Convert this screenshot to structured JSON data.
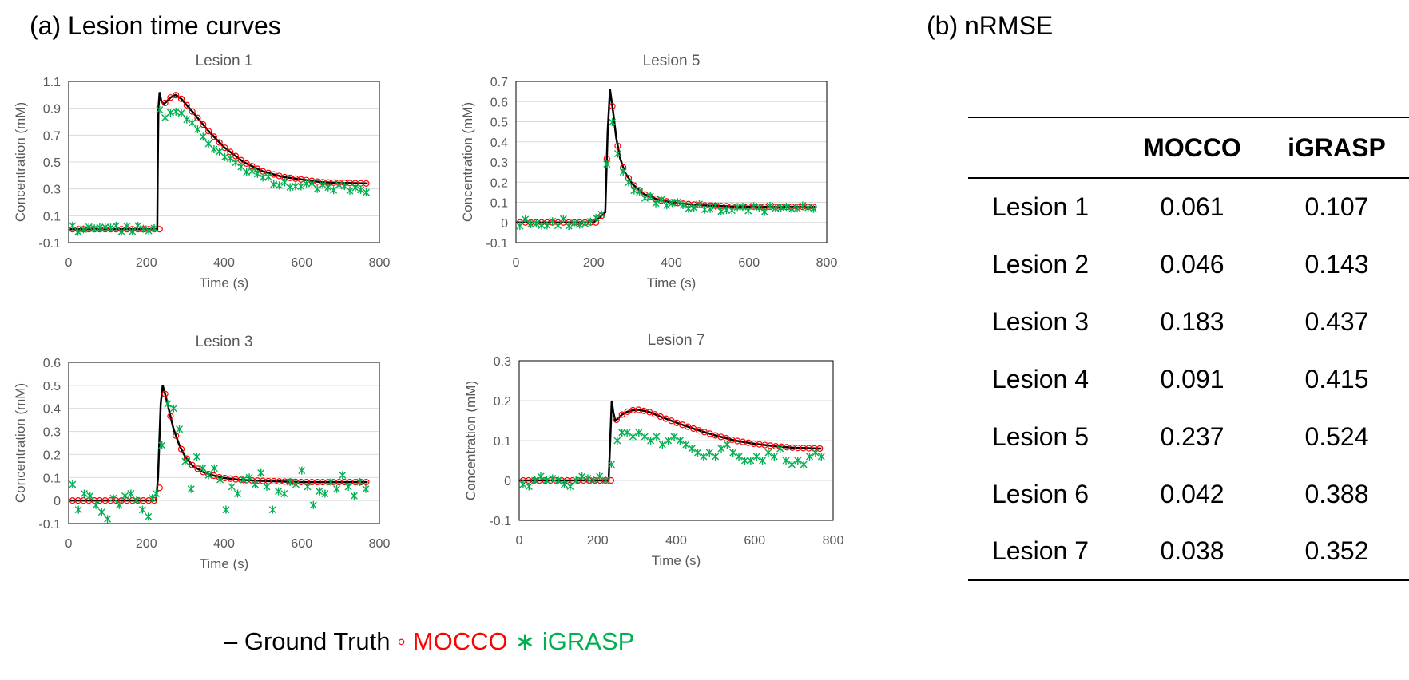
{
  "panel_a_title": "(a) Lesion time curves",
  "panel_b_title": "(b) nRMSE",
  "legend": {
    "truth_symbol": "–",
    "truth_label": "Ground Truth",
    "mocco_symbol": "◦",
    "mocco_label": "MOCCO",
    "igrasp_symbol": "∗",
    "igrasp_label": "iGRASP"
  },
  "colors": {
    "ground_truth": "#000000",
    "mocco": "#ff0000",
    "igrasp": "#00b050",
    "grid": "#d9d9d9",
    "axis_text": "#595959"
  },
  "table": {
    "columns": [
      "",
      "MOCCO",
      "iGRASP"
    ],
    "rows": [
      {
        "label": "Lesion 1",
        "mocco": "0.061",
        "igrasp": "0.107"
      },
      {
        "label": "Lesion 2",
        "mocco": "0.046",
        "igrasp": "0.143"
      },
      {
        "label": "Lesion 3",
        "mocco": "0.183",
        "igrasp": "0.437"
      },
      {
        "label": "Lesion 4",
        "mocco": "0.091",
        "igrasp": "0.415"
      },
      {
        "label": "Lesion 5",
        "mocco": "0.237",
        "igrasp": "0.524"
      },
      {
        "label": "Lesion 6",
        "mocco": "0.042",
        "igrasp": "0.388"
      },
      {
        "label": "Lesion 7",
        "mocco": "0.038",
        "igrasp": "0.352"
      }
    ]
  },
  "chart_data": [
    {
      "type": "line",
      "title": "Lesion 1",
      "xlabel": "Time (s)",
      "ylabel": "Concentration (mM)",
      "xlim": [
        0,
        800
      ],
      "ylim": [
        -0.1,
        1.1
      ],
      "xticks": [
        0,
        200,
        400,
        600,
        800
      ],
      "yticks": [
        -0.1,
        0.1,
        0.3,
        0.5,
        0.7,
        0.9,
        1.1
      ],
      "ytick_labels": [
        "-0.1",
        "0.1",
        "0.3",
        "0.5",
        "0.7",
        "0.9",
        "1.1"
      ],
      "grid": true,
      "model": {
        "baseline": 0.0,
        "t0": 228,
        "peak_t": 234,
        "peak": 1.02,
        "dip": 0.93,
        "hump_t": 275,
        "hump": 1.0,
        "plateau": 0.34,
        "tau": 95
      },
      "igrasp_model": {
        "scale": 0.93,
        "noise": 0.03,
        "plateau_offset": -0.02
      },
      "series": [
        {
          "name": "Ground Truth",
          "style": "line",
          "x": [
            0,
            228,
            229,
            231,
            234,
            238,
            244,
            252,
            262,
            275,
            290,
            320,
            360,
            400,
            450,
            500,
            550,
            600,
            650,
            700,
            770
          ],
          "y": [
            0.0,
            0.0,
            0.4,
            0.9,
            1.02,
            0.96,
            0.93,
            0.95,
            0.98,
            1.0,
            0.97,
            0.87,
            0.73,
            0.61,
            0.5,
            0.43,
            0.39,
            0.37,
            0.35,
            0.345,
            0.34
          ]
        },
        {
          "name": "MOCCO",
          "style": "circle"
        },
        {
          "name": "iGRASP",
          "style": "star"
        }
      ]
    },
    {
      "type": "line",
      "title": "Lesion 5",
      "xlabel": "Time (s)",
      "ylabel": "Concentration (mM)",
      "xlim": [
        0,
        800
      ],
      "ylim": [
        -0.1,
        0.7
      ],
      "xticks": [
        0,
        200,
        400,
        600,
        800
      ],
      "yticks": [
        -0.1,
        0,
        0.1,
        0.2,
        0.3,
        0.4,
        0.5,
        0.6,
        0.7
      ],
      "ytick_labels": [
        "-0.1",
        "0",
        "0.1",
        "0.2",
        "0.3",
        "0.4",
        "0.5",
        "0.6",
        "0.7"
      ],
      "grid": true,
      "series": [
        {
          "name": "Ground Truth",
          "style": "line",
          "x": [
            0,
            200,
            230,
            236,
            242,
            250,
            258,
            268,
            280,
            300,
            330,
            370,
            420,
            480,
            550,
            650,
            770
          ],
          "y": [
            0.0,
            0.0,
            0.05,
            0.45,
            0.66,
            0.55,
            0.42,
            0.32,
            0.25,
            0.19,
            0.14,
            0.11,
            0.095,
            0.085,
            0.08,
            0.078,
            0.077
          ]
        },
        {
          "name": "MOCCO",
          "style": "circle"
        },
        {
          "name": "iGRASP",
          "style": "star"
        }
      ]
    },
    {
      "type": "line",
      "title": "Lesion 3",
      "xlabel": "Time (s)",
      "ylabel": "Concentration (mM)",
      "xlim": [
        0,
        800
      ],
      "ylim": [
        -0.1,
        0.6
      ],
      "xticks": [
        0,
        200,
        400,
        600,
        800
      ],
      "yticks": [
        -0.1,
        0,
        0.1,
        0.2,
        0.3,
        0.4,
        0.5,
        0.6
      ],
      "ytick_labels": [
        "-0.1",
        "0",
        "0.1",
        "0.2",
        "0.3",
        "0.4",
        "0.5",
        "0.6"
      ],
      "grid": true,
      "series": [
        {
          "name": "Ground Truth",
          "style": "line",
          "x": [
            0,
            225,
            230,
            237,
            242,
            250,
            260,
            270,
            285,
            300,
            320,
            350,
            390,
            440,
            500,
            600,
            770
          ],
          "y": [
            0.0,
            0.0,
            0.1,
            0.42,
            0.5,
            0.45,
            0.38,
            0.31,
            0.24,
            0.19,
            0.15,
            0.12,
            0.1,
            0.09,
            0.085,
            0.08,
            0.08
          ]
        },
        {
          "name": "MOCCO",
          "style": "circle"
        },
        {
          "name": "iGRASP",
          "style": "star",
          "x": [
            10,
            25,
            40,
            55,
            70,
            85,
            100,
            115,
            130,
            145,
            160,
            175,
            190,
            205,
            215,
            225,
            240,
            255,
            270,
            285,
            300,
            315,
            330,
            345,
            360,
            375,
            390,
            405,
            420,
            435,
            450,
            465,
            480,
            495,
            510,
            525,
            540,
            555,
            570,
            585,
            600,
            615,
            630,
            645,
            660,
            675,
            690,
            705,
            720,
            735,
            750,
            765
          ],
          "y": [
            0.07,
            -0.04,
            0.03,
            0.02,
            -0.02,
            -0.05,
            -0.08,
            0.01,
            -0.02,
            0.02,
            0.03,
            0.0,
            -0.04,
            -0.07,
            0.01,
            0.03,
            0.24,
            0.42,
            0.4,
            0.31,
            0.17,
            0.05,
            0.19,
            0.14,
            0.11,
            0.14,
            0.09,
            -0.04,
            0.06,
            0.03,
            0.09,
            0.1,
            0.07,
            0.12,
            0.06,
            -0.04,
            0.04,
            0.03,
            0.08,
            0.07,
            0.13,
            0.06,
            -0.02,
            0.04,
            0.03,
            0.08,
            0.05,
            0.11,
            0.06,
            0.02,
            0.08,
            0.05
          ]
        }
      ]
    },
    {
      "type": "line",
      "title": "Lesion 7",
      "xlabel": "Time (s)",
      "ylabel": "Concentration (mM)",
      "xlim": [
        0,
        800
      ],
      "ylim": [
        -0.1,
        0.3
      ],
      "xticks": [
        0,
        200,
        400,
        600,
        800
      ],
      "yticks": [
        -0.1,
        0,
        0.1,
        0.2,
        0.3
      ],
      "ytick_labels": [
        "-0.1",
        "0",
        "0.1",
        "0.2",
        "0.3"
      ],
      "grid": true,
      "series": [
        {
          "name": "Ground Truth",
          "style": "line",
          "x": [
            0,
            228,
            232,
            236,
            240,
            245,
            252,
            262,
            275,
            290,
            305,
            330,
            360,
            400,
            450,
            500,
            550,
            600,
            650,
            700,
            770
          ],
          "y": [
            0.0,
            0.0,
            0.1,
            0.2,
            0.17,
            0.15,
            0.155,
            0.165,
            0.172,
            0.176,
            0.177,
            0.172,
            0.16,
            0.145,
            0.128,
            0.113,
            0.1,
            0.092,
            0.086,
            0.082,
            0.08
          ]
        },
        {
          "name": "MOCCO",
          "style": "circle"
        },
        {
          "name": "iGRASP",
          "style": "star",
          "x": [
            10,
            25,
            40,
            55,
            70,
            85,
            100,
            115,
            130,
            145,
            160,
            175,
            190,
            205,
            220,
            235,
            250,
            262,
            275,
            290,
            305,
            320,
            335,
            350,
            365,
            380,
            395,
            410,
            425,
            440,
            455,
            470,
            485,
            500,
            515,
            530,
            545,
            560,
            575,
            590,
            605,
            620,
            635,
            650,
            665,
            680,
            695,
            710,
            725,
            740,
            755,
            770
          ],
          "y": [
            -0.01,
            -0.015,
            0.0,
            0.01,
            0.0,
            0.005,
            0.0,
            -0.01,
            -0.015,
            0.0,
            0.01,
            0.005,
            0.0,
            0.01,
            0.0,
            0.04,
            0.1,
            0.12,
            0.12,
            0.11,
            0.12,
            0.11,
            0.1,
            0.11,
            0.09,
            0.1,
            0.11,
            0.1,
            0.09,
            0.08,
            0.07,
            0.06,
            0.07,
            0.06,
            0.08,
            0.09,
            0.07,
            0.06,
            0.05,
            0.05,
            0.06,
            0.05,
            0.07,
            0.06,
            0.08,
            0.05,
            0.04,
            0.05,
            0.04,
            0.06,
            0.07,
            0.06
          ]
        }
      ]
    }
  ]
}
